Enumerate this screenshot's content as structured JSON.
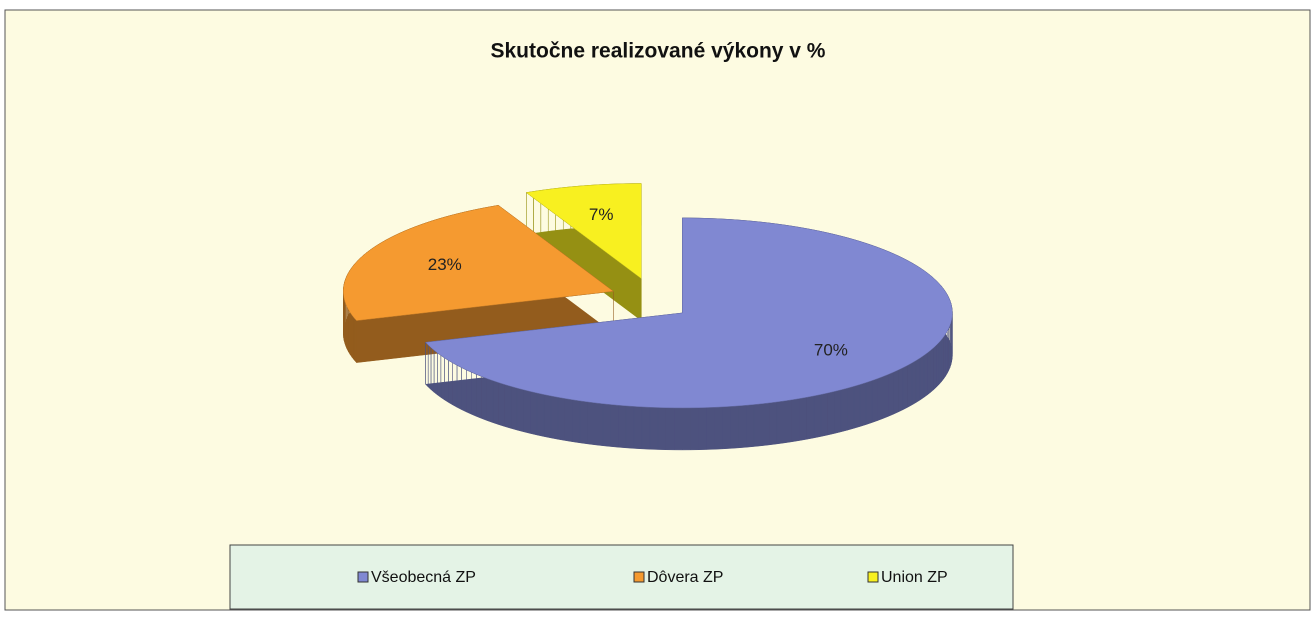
{
  "chart_data": {
    "type": "pie3d",
    "title": "Skutočne realizované výkony v %",
    "categories": [
      "Všeobecná ZP",
      "Dôvera ZP",
      "Union ZP"
    ],
    "values": [
      70,
      23,
      7
    ],
    "value_labels": [
      "70%",
      "23%",
      "7%"
    ],
    "colors": [
      "#8088d2",
      "#f59a30",
      "#f8f020"
    ],
    "legend": "bottom"
  }
}
